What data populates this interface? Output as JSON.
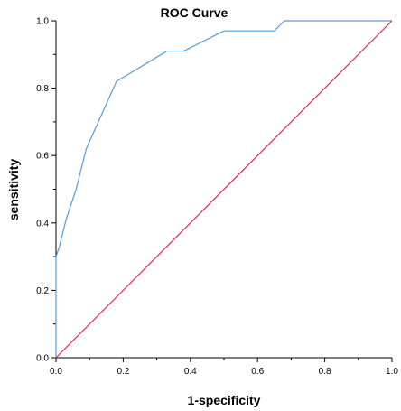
{
  "chart_data": {
    "type": "line",
    "title": "ROC Curve",
    "xlabel": "1-specificity",
    "ylabel": "sensitivity",
    "xlim": [
      0,
      1
    ],
    "ylim": [
      0,
      1
    ],
    "x_ticks": [
      "0.0",
      "0.2",
      "0.4",
      "0.6",
      "0.8",
      "1.0"
    ],
    "y_ticks": [
      "0.0",
      "0.2",
      "0.4",
      "0.6",
      "0.8",
      "1.0"
    ],
    "grid": false,
    "legend": "none",
    "series": [
      {
        "color": "#5b9bd5",
        "x": [
          0.0,
          0.0,
          0.0,
          0.01,
          0.03,
          0.06,
          0.09,
          0.18,
          0.33,
          0.38,
          0.5,
          0.65,
          0.68,
          1.0
        ],
        "y": [
          0.0,
          0.3,
          0.3,
          0.33,
          0.41,
          0.5,
          0.62,
          0.82,
          0.91,
          0.91,
          0.97,
          0.97,
          1.0,
          1.0
        ]
      },
      {
        "color": "#d6305a",
        "x": [
          0.0,
          1.0
        ],
        "y": [
          0.0,
          1.0
        ]
      }
    ]
  }
}
